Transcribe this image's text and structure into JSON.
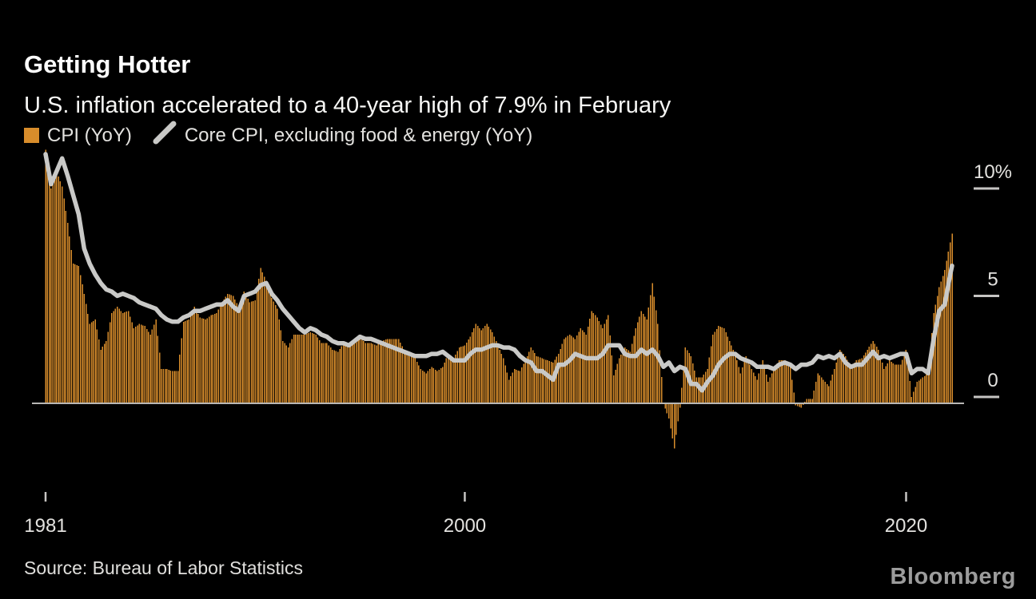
{
  "header": {
    "title": "Getting Hotter",
    "subtitle": "U.S. inflation accelerated to a 40-year high of 7.9% in February"
  },
  "legend": [
    {
      "swatch": "bar",
      "color": "#d88d2b",
      "label": "CPI (YoY)"
    },
    {
      "swatch": "line",
      "color": "#c9c9c7",
      "label": "Core CPI, excluding food & energy (YoY)"
    }
  ],
  "footer": {
    "source": "Source: Bureau of Labor Statistics",
    "brand": "Bloomberg"
  },
  "colors": {
    "background": "#000000",
    "bars": "#d88d2b",
    "core_line": "#c9c9c7",
    "baseline": "#b8b7b5",
    "axis_text": "#e3e2df",
    "tick": "#c6c5c3"
  },
  "chart_data": {
    "type": "bar",
    "combo": "monthly orange bars (headline CPI) with thick light-gray line overlay (core CPI)",
    "title": "Getting Hotter",
    "subtitle": "U.S. inflation accelerated to a 40-year high of 7.9% in February",
    "unit": "% year-over-year",
    "x_start": "1981-01",
    "x_end": "2022-02",
    "sampling": "quarterly values (Jan, Apr, Jul, Oct of each year 1981-2021, plus Jan 2022), final point Feb 2022 listed separately; bars are monthly in source figure",
    "ylim": [
      -3,
      12
    ],
    "grid": false,
    "legend_position": "top-left",
    "y_ticks": [
      {
        "value": 0,
        "label": "0"
      },
      {
        "value": 5,
        "label": "5"
      },
      {
        "value": 10,
        "label": "10%"
      }
    ],
    "x_ticks": [
      {
        "year": 1981,
        "label": "1981"
      },
      {
        "year": 2000,
        "label": "2000"
      },
      {
        "year": 2020,
        "label": "2020"
      }
    ],
    "series": [
      {
        "name": "CPI (YoY)",
        "type": "bar",
        "color": "#d88d2b",
        "values_quarterly": [
          11.8,
          10.0,
          10.8,
          10.1,
          8.4,
          6.5,
          6.4,
          5.1,
          3.7,
          3.9,
          2.5,
          2.9,
          4.2,
          4.5,
          4.2,
          4.3,
          3.5,
          3.7,
          3.6,
          3.2,
          3.9,
          1.6,
          1.6,
          1.5,
          1.5,
          3.8,
          3.9,
          4.5,
          4.0,
          3.9,
          4.1,
          4.2,
          4.7,
          5.1,
          5.0,
          4.5,
          5.2,
          4.7,
          4.8,
          6.3,
          5.7,
          4.9,
          4.4,
          2.9,
          2.6,
          3.2,
          3.2,
          3.2,
          3.3,
          3.2,
          2.8,
          2.8,
          2.5,
          2.4,
          2.8,
          2.6,
          2.8,
          3.1,
          2.8,
          2.8,
          2.7,
          2.9,
          3.0,
          3.0,
          3.0,
          2.5,
          2.2,
          2.1,
          1.6,
          1.4,
          1.7,
          1.5,
          1.7,
          2.3,
          2.1,
          2.6,
          2.7,
          3.1,
          3.7,
          3.4,
          3.7,
          3.3,
          2.7,
          2.1,
          1.1,
          1.6,
          1.5,
          2.0,
          2.6,
          2.2,
          2.1,
          2.0,
          1.9,
          2.3,
          3.0,
          3.2,
          3.0,
          3.5,
          3.2,
          4.3,
          4.0,
          3.5,
          4.1,
          1.3,
          2.1,
          2.6,
          2.4,
          3.5,
          4.3,
          3.9,
          5.6,
          3.7,
          0.0,
          -0.7,
          -2.1,
          -0.2,
          2.6,
          2.2,
          1.2,
          1.2,
          1.6,
          3.2,
          3.6,
          3.5,
          2.9,
          2.3,
          1.4,
          2.2,
          1.6,
          1.1,
          2.0,
          1.0,
          1.6,
          2.0,
          2.0,
          1.7,
          -0.1,
          -0.2,
          0.2,
          0.2,
          1.4,
          1.1,
          0.8,
          1.6,
          2.5,
          2.2,
          1.7,
          2.0,
          2.1,
          2.5,
          2.9,
          2.5,
          1.6,
          2.0,
          1.8,
          1.8,
          2.5,
          0.3,
          1.0,
          1.2,
          1.4,
          4.2,
          5.4,
          6.2,
          7.5
        ],
        "value_feb_2022": 7.9
      },
      {
        "name": "Core CPI, excluding food & energy (YoY)",
        "type": "line",
        "color": "#c9c9c7",
        "values_quarterly": [
          11.6,
          10.2,
          10.8,
          11.4,
          10.6,
          9.7,
          8.8,
          7.2,
          6.5,
          6.0,
          5.6,
          5.3,
          5.2,
          5.0,
          5.1,
          5.0,
          4.9,
          4.7,
          4.6,
          4.5,
          4.4,
          4.1,
          3.9,
          3.8,
          3.8,
          4.0,
          4.1,
          4.3,
          4.3,
          4.4,
          4.5,
          4.6,
          4.6,
          4.8,
          4.5,
          4.3,
          5.0,
          5.1,
          5.2,
          5.5,
          5.6,
          5.1,
          4.8,
          4.4,
          4.1,
          3.8,
          3.5,
          3.3,
          3.5,
          3.4,
          3.2,
          3.1,
          2.9,
          2.8,
          2.8,
          2.7,
          2.9,
          3.1,
          3.0,
          3.0,
          2.9,
          2.8,
          2.7,
          2.6,
          2.5,
          2.4,
          2.3,
          2.2,
          2.2,
          2.2,
          2.3,
          2.3,
          2.4,
          2.2,
          2.0,
          2.0,
          2.0,
          2.3,
          2.5,
          2.5,
          2.6,
          2.7,
          2.7,
          2.6,
          2.6,
          2.5,
          2.2,
          2.0,
          1.9,
          1.5,
          1.5,
          1.3,
          1.1,
          1.8,
          1.8,
          2.0,
          2.3,
          2.2,
          2.1,
          2.1,
          2.1,
          2.3,
          2.7,
          2.7,
          2.7,
          2.3,
          2.2,
          2.2,
          2.5,
          2.3,
          2.5,
          2.2,
          1.7,
          1.9,
          1.5,
          1.7,
          1.6,
          0.9,
          0.9,
          0.6,
          1.0,
          1.3,
          1.8,
          2.1,
          2.3,
          2.3,
          2.1,
          2.0,
          1.9,
          1.7,
          1.7,
          1.7,
          1.6,
          1.8,
          1.9,
          1.8,
          1.6,
          1.8,
          1.8,
          1.9,
          2.2,
          2.1,
          2.2,
          2.1,
          2.3,
          1.9,
          1.7,
          1.8,
          1.8,
          2.1,
          2.4,
          2.1,
          2.2,
          2.1,
          2.2,
          2.3,
          2.3,
          1.4,
          1.6,
          1.6,
          1.4,
          3.0,
          4.3,
          4.6,
          6.0
        ],
        "value_feb_2022": 6.4
      }
    ]
  }
}
